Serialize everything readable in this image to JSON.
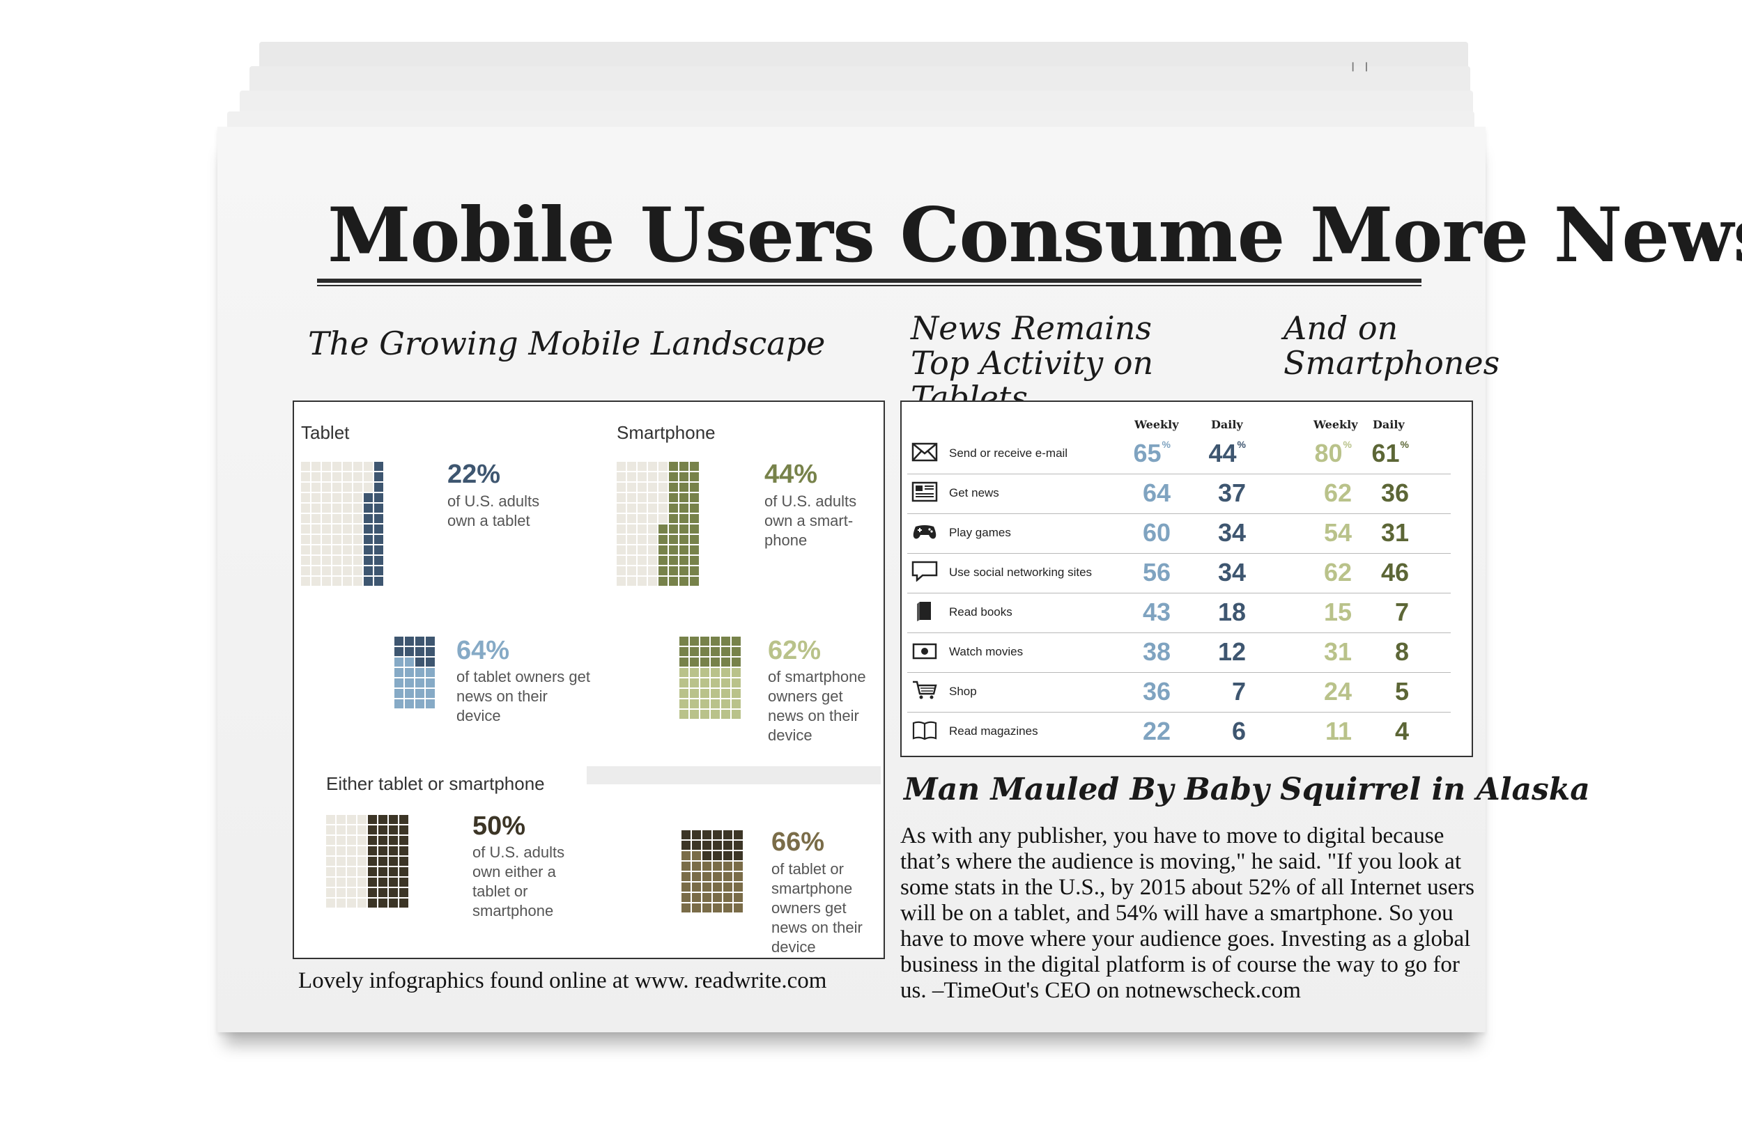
{
  "masthead": "Mobile Users Consume More News",
  "left_section": {
    "title": "The Growing Mobile Landscape",
    "tablet": {
      "label": "Tablet",
      "stat1": {
        "pct": "22%",
        "desc": "of U.S. adults own a tablet",
        "value": 22
      },
      "stat2": {
        "pct": "64%",
        "desc": "of tablet owners get news on their device",
        "value": 64
      }
    },
    "smartphone": {
      "label": "Smartphone",
      "stat1": {
        "pct": "44%",
        "desc": "of U.S. adults own a smart-phone",
        "value": 44
      },
      "stat2": {
        "pct": "62%",
        "desc": "of smartphone owners get news on their device",
        "value": 62
      }
    },
    "either": {
      "label": "Either tablet or smartphone",
      "stat1": {
        "pct": "50%",
        "desc": "of U.S. adults own either a tablet or smartphone",
        "value": 50
      },
      "stat2": {
        "pct": "66%",
        "desc": "of tablet or smartphone owners get news on their device",
        "value": 66
      }
    },
    "colors": {
      "tablet_dark": "#3e5670",
      "tablet_light": "#86aac6",
      "smart_dark": "#77824a",
      "smart_light": "#b9c28a",
      "either_dark": "#3c3526",
      "either_mid": "#7a6c48",
      "empty": "#ebe8e0"
    },
    "credit": "Lovely infographics found online at www. readwrite.com"
  },
  "tablets_title": "News Remains Top Activity on Tablets",
  "smartphones_title": "And on Smartphones",
  "activity_table": {
    "col_weekly": "Weekly",
    "col_daily": "Daily",
    "rows": [
      {
        "icon": "envelope-icon",
        "label": "Send or receive e-mail",
        "tw": "65",
        "td": "44",
        "sw": "80",
        "sd": "61",
        "pct": "%"
      },
      {
        "icon": "newspaper-icon",
        "label": "Get news",
        "tw": "64",
        "td": "37",
        "sw": "62",
        "sd": "36"
      },
      {
        "icon": "gamepad-icon",
        "label": "Play games",
        "tw": "60",
        "td": "34",
        "sw": "54",
        "sd": "31"
      },
      {
        "icon": "speech-bubble-icon",
        "label": "Use social networking sites",
        "tw": "56",
        "td": "34",
        "sw": "62",
        "sd": "46"
      },
      {
        "icon": "book-icon",
        "label": "Read books",
        "tw": "43",
        "td": "18",
        "sw": "15",
        "sd": "7"
      },
      {
        "icon": "movie-icon",
        "label": "Watch movies",
        "tw": "38",
        "td": "12",
        "sw": "31",
        "sd": "8"
      },
      {
        "icon": "cart-icon",
        "label": "Shop",
        "tw": "36",
        "td": "7",
        "sw": "24",
        "sd": "5"
      },
      {
        "icon": "open-book-icon",
        "label": "Read magazines",
        "tw": "22",
        "td": "6",
        "sw": "11",
        "sd": "4"
      }
    ],
    "colors": {
      "tw": "#7fa3c0",
      "td": "#3e5670",
      "sw": "#b9c28a",
      "sd": "#5c6636"
    }
  },
  "article": {
    "headline": "Man Mauled By Baby Squirrel in Alaska",
    "body": "As with any publisher, you have to move to digital because that’s where the audience is moving,\" he said. \"If you look at some stats in the U.S., by 2015 about 52% of all Internet users will be on a tablet, and 54% will have a smartphone. So you have to move where your audience goes. Investing as a global business in the digital platform is of course the way to go for us. –TimeOut's CEO on notnewscheck.com"
  }
}
